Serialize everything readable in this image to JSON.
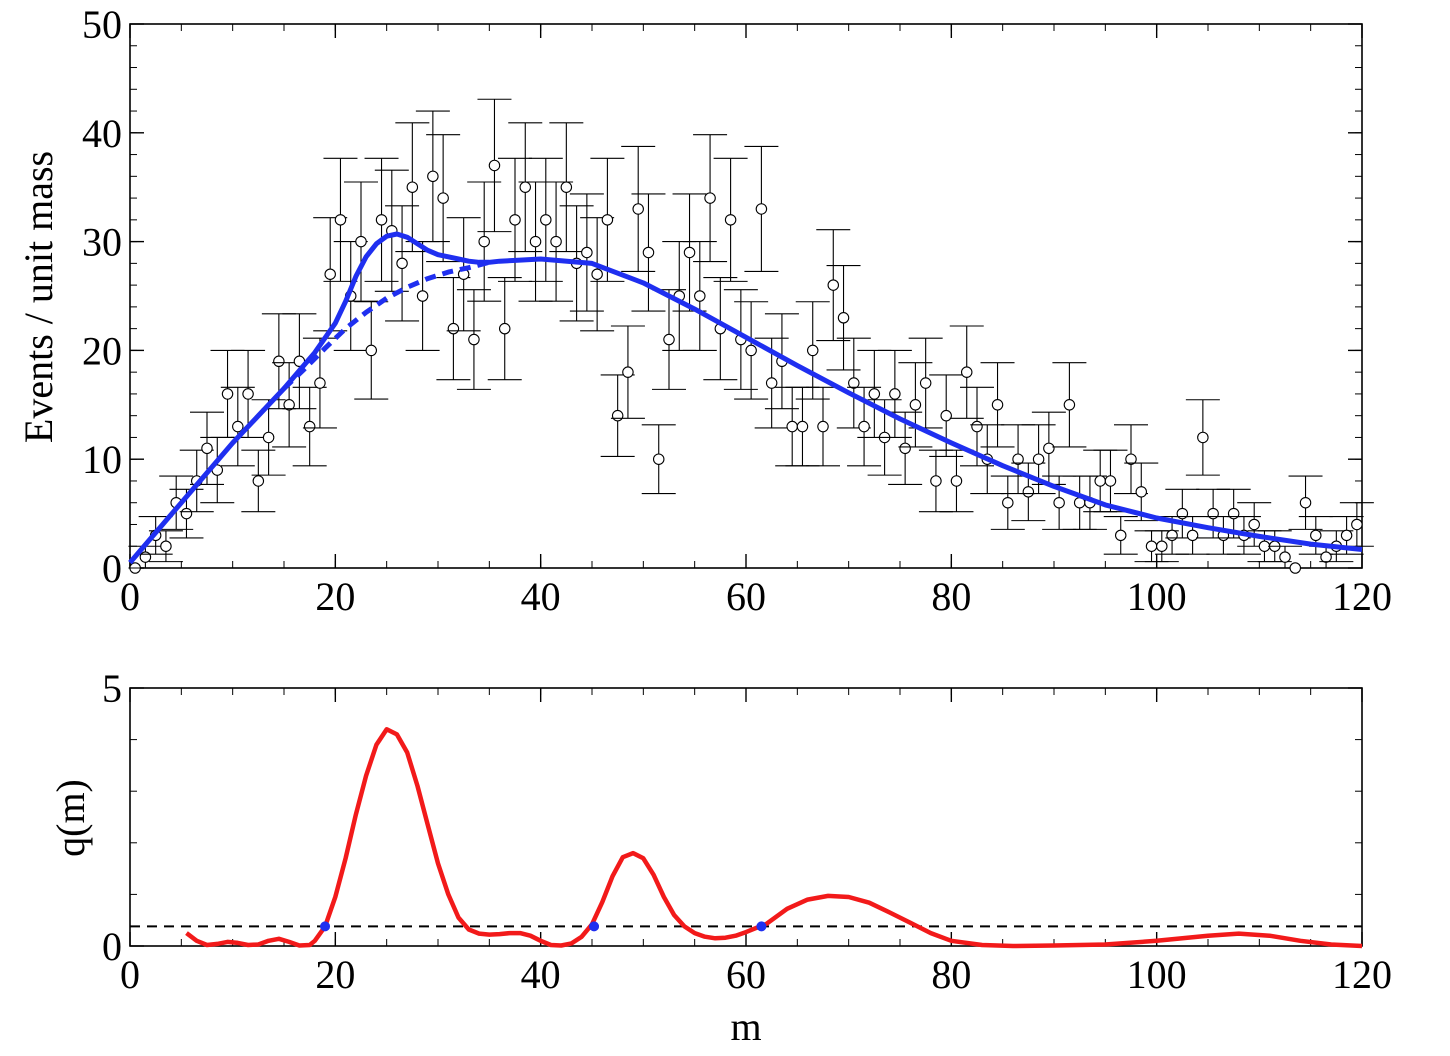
{
  "chart_data": [
    {
      "type": "scatter",
      "xlabel": "",
      "ylabel": "Events / unit mass",
      "xlim": [
        0,
        120
      ],
      "ylim": [
        0,
        50
      ],
      "xticks": [
        0,
        20,
        40,
        60,
        80,
        100,
        120
      ],
      "yticks": [
        0,
        10,
        20,
        30,
        40,
        50
      ],
      "grid": false,
      "data_points": {
        "x": [
          0.5,
          1.5,
          2.5,
          3.5,
          4.5,
          5.5,
          6.5,
          7.5,
          8.5,
          9.5,
          10.5,
          11.5,
          12.5,
          13.5,
          14.5,
          15.5,
          16.5,
          17.5,
          18.5,
          19.5,
          20.5,
          21.5,
          22.5,
          23.5,
          24.5,
          25.5,
          26.5,
          27.5,
          28.5,
          29.5,
          30.5,
          31.5,
          32.5,
          33.5,
          34.5,
          35.5,
          36.5,
          37.5,
          38.5,
          39.5,
          40.5,
          41.5,
          42.5,
          43.5,
          44.5,
          45.5,
          46.5,
          47.5,
          48.5,
          49.5,
          50.5,
          51.5,
          52.5,
          53.5,
          54.5,
          55.5,
          56.5,
          57.5,
          58.5,
          59.5,
          60.5,
          61.5,
          62.5,
          63.5,
          64.5,
          65.5,
          66.5,
          67.5,
          68.5,
          69.5,
          70.5,
          71.5,
          72.5,
          73.5,
          74.5,
          75.5,
          76.5,
          77.5,
          78.5,
          79.5,
          80.5,
          81.5,
          82.5,
          83.5,
          84.5,
          85.5,
          86.5,
          87.5,
          88.5,
          89.5,
          90.5,
          91.5,
          92.5,
          93.5,
          94.5,
          95.5,
          96.5,
          97.5,
          98.5,
          99.5,
          100.5,
          101.5,
          102.5,
          103.5,
          104.5,
          105.5,
          106.5,
          107.5,
          108.5,
          109.5,
          110.5,
          111.5,
          112.5,
          113.5,
          114.5,
          115.5,
          116.5,
          117.5,
          118.5,
          119.5
        ],
        "y": [
          0,
          1,
          3,
          2,
          6,
          5,
          8,
          11,
          9,
          16,
          13,
          16,
          8,
          12,
          19,
          15,
          19,
          13,
          17,
          27,
          32,
          25,
          30,
          20,
          32,
          31,
          28,
          35,
          25,
          36,
          34,
          22,
          27,
          21,
          30,
          37,
          22,
          32,
          35,
          30,
          32,
          30,
          35,
          28,
          29,
          27,
          32,
          14,
          18,
          33,
          29,
          10,
          21,
          25,
          29,
          25,
          34,
          22,
          32,
          21,
          20,
          33,
          17,
          19,
          13,
          13,
          20,
          13,
          26,
          23,
          17,
          13,
          16,
          12,
          16,
          11,
          15,
          17,
          8,
          14,
          8,
          18,
          13,
          10,
          15,
          6,
          10,
          7,
          10,
          11,
          6,
          15,
          6,
          6,
          8,
          8,
          3,
          10,
          7,
          2,
          2,
          3,
          5,
          3,
          12,
          5,
          3,
          5,
          3,
          4,
          2,
          2,
          1,
          0,
          6,
          3,
          1,
          2,
          3,
          4
        ]
      },
      "error_bars": "sqrt(N)",
      "series": [
        {
          "name": "",
          "style": "solid",
          "color": "#1f2ff0",
          "x": [
            0,
            5,
            10,
            15,
            18,
            20,
            21,
            22,
            23,
            24,
            25,
            26,
            27,
            28,
            29,
            30,
            31,
            32,
            33,
            34,
            35,
            36,
            38,
            40,
            45,
            50,
            55,
            60,
            65,
            70,
            75,
            80,
            85,
            90,
            95,
            100,
            105,
            110,
            115,
            120
          ],
          "y": [
            0.5,
            6,
            11.5,
            16.5,
            19.8,
            22.5,
            24.5,
            26.8,
            28.6,
            29.8,
            30.5,
            30.7,
            30.4,
            29.8,
            29.2,
            28.8,
            28.6,
            28.4,
            28.2,
            28.1,
            28.1,
            28.2,
            28.3,
            28.4,
            28,
            26.2,
            23.8,
            21.2,
            18.6,
            16.1,
            13.7,
            11.5,
            9.4,
            7.5,
            5.8,
            4.6,
            3.7,
            2.9,
            2.2,
            1.7
          ]
        },
        {
          "name": "",
          "style": "dashed",
          "color": "#1f2ff0",
          "x": [
            15,
            17,
            19,
            21,
            23,
            25,
            27,
            29,
            31,
            33,
            35
          ],
          "y": [
            16.5,
            18.3,
            20.2,
            22,
            23.5,
            24.8,
            25.8,
            26.6,
            27.2,
            27.6,
            28.1
          ]
        }
      ]
    },
    {
      "type": "line",
      "xlabel": "m",
      "ylabel": "q(m)",
      "xlim": [
        0,
        120
      ],
      "ylim": [
        0,
        5
      ],
      "xticks": [
        0,
        20,
        40,
        60,
        80,
        100,
        120
      ],
      "yticks": [
        0,
        5
      ],
      "grid": false,
      "threshold": 0.38,
      "threshold_color": "#000000",
      "series": [
        {
          "name": "",
          "color": "#f21a1a",
          "x": [
            5.5,
            6.5,
            7.5,
            8.5,
            9.5,
            10.5,
            11.5,
            12.5,
            13.5,
            14.5,
            15.5,
            16.5,
            17.5,
            18,
            19,
            20,
            21,
            22,
            23,
            24,
            25,
            26,
            27,
            28,
            29,
            30,
            31,
            32,
            33,
            34,
            35,
            36,
            37,
            38,
            39,
            40,
            41,
            42,
            43,
            44,
            45,
            46,
            47,
            48,
            49,
            50,
            51,
            52,
            53,
            54,
            55,
            56,
            57,
            58,
            59,
            60,
            62,
            64,
            66,
            68,
            70,
            72,
            74,
            76,
            78,
            80,
            83,
            86,
            90,
            95,
            100,
            105,
            108,
            111,
            114,
            117,
            120
          ],
          "y": [
            0.25,
            0.1,
            0.02,
            0.04,
            0.08,
            0.06,
            0.02,
            0.03,
            0.1,
            0.14,
            0.08,
            0.01,
            0.02,
            0.1,
            0.38,
            0.95,
            1.7,
            2.55,
            3.3,
            3.9,
            4.2,
            4.1,
            3.75,
            3.1,
            2.35,
            1.6,
            1.0,
            0.55,
            0.32,
            0.24,
            0.22,
            0.23,
            0.25,
            0.25,
            0.2,
            0.1,
            0.02,
            0.01,
            0.05,
            0.18,
            0.42,
            0.85,
            1.35,
            1.72,
            1.8,
            1.7,
            1.38,
            0.95,
            0.6,
            0.38,
            0.25,
            0.18,
            0.15,
            0.16,
            0.2,
            0.27,
            0.43,
            0.72,
            0.9,
            0.97,
            0.95,
            0.84,
            0.65,
            0.45,
            0.25,
            0.1,
            0.02,
            0.0,
            0.01,
            0.03,
            0.1,
            0.2,
            0.24,
            0.2,
            0.1,
            0.03,
            0.0
          ]
        }
      ],
      "crossings": {
        "x": [
          19,
          45.2,
          61.5
        ],
        "y": [
          0.38,
          0.38,
          0.38
        ],
        "color": "#1f2ff0"
      }
    }
  ]
}
